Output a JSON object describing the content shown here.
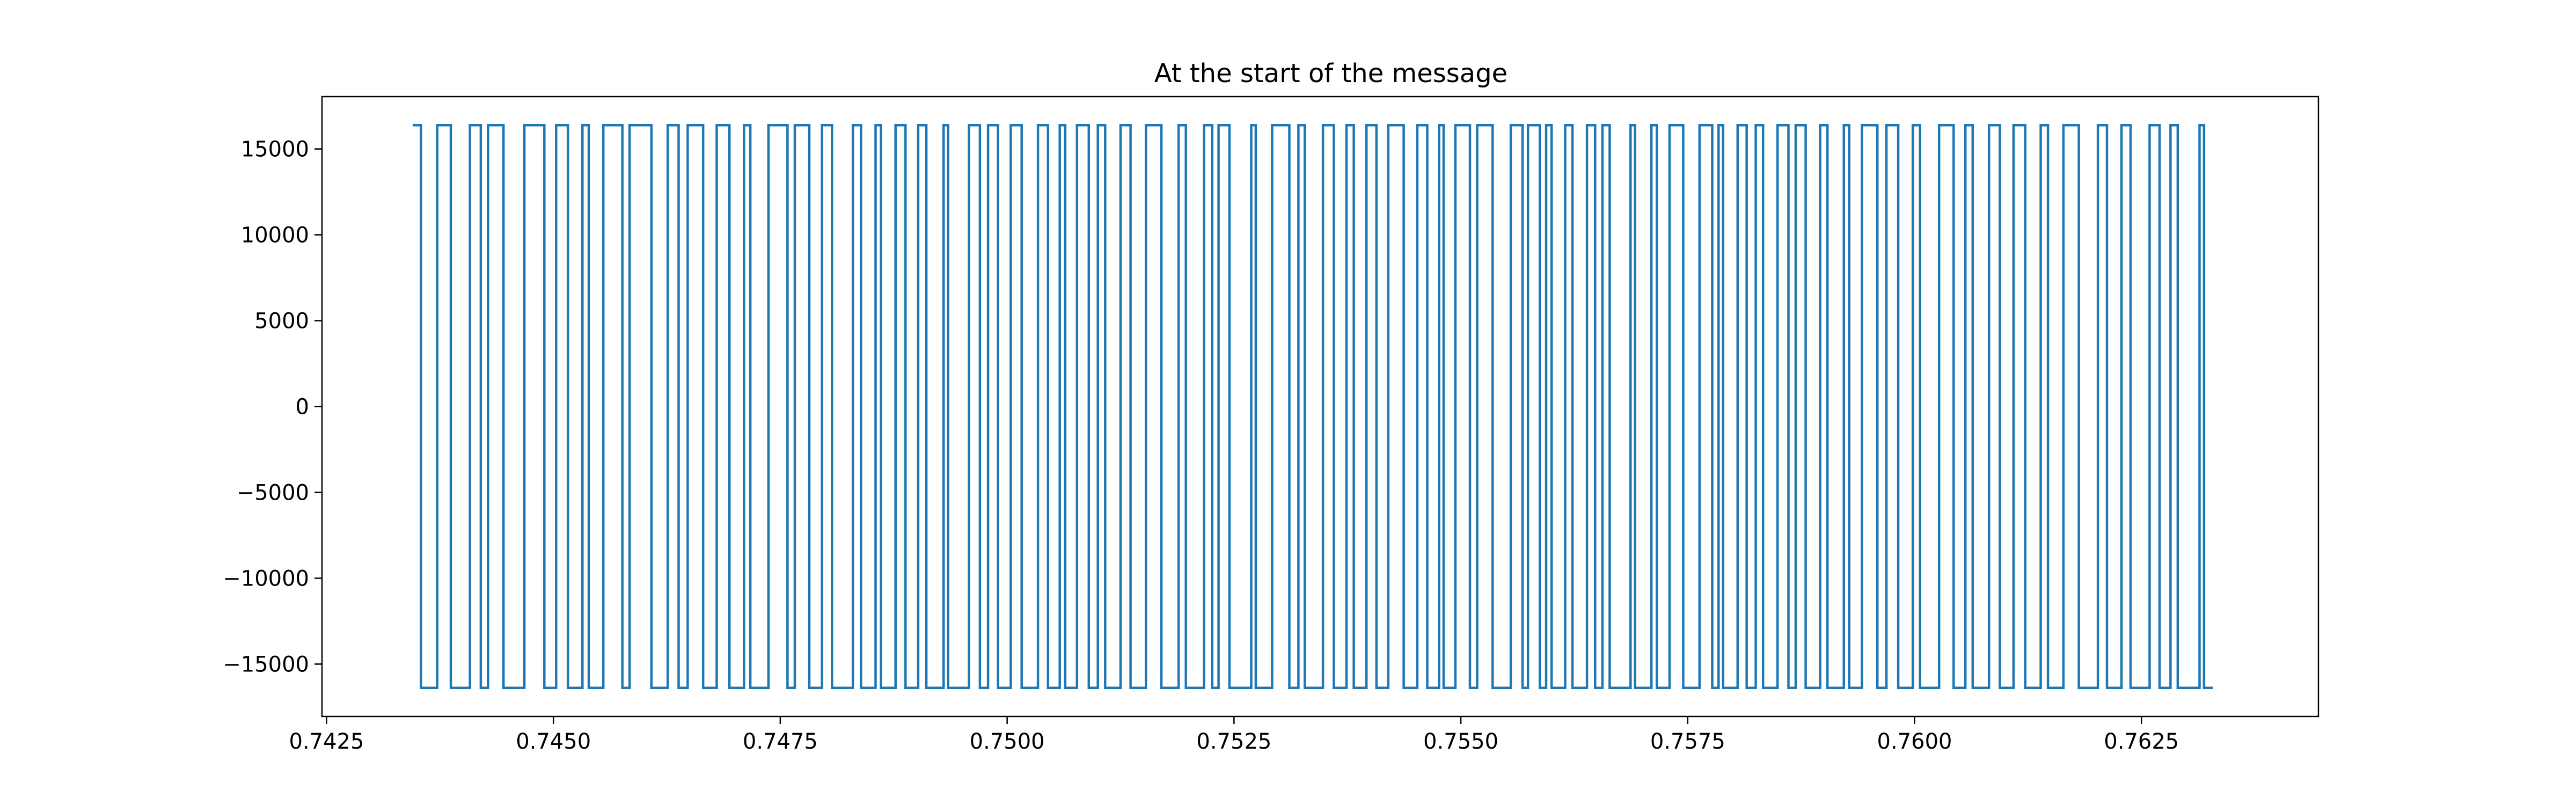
{
  "chart_data": {
    "type": "line",
    "title": "At the start of the message",
    "xlabel": "",
    "ylabel": "",
    "xlim": [
      0.74245,
      0.76445
    ],
    "ylim": [
      -18050,
      18050
    ],
    "xticks": [
      0.7425,
      0.745,
      0.7475,
      0.75,
      0.7525,
      0.755,
      0.7575,
      0.76,
      0.7625
    ],
    "xtick_labels": [
      "0.7425",
      "0.7450",
      "0.7475",
      "0.7500",
      "0.7525",
      "0.7550",
      "0.7575",
      "0.7600",
      "0.7625"
    ],
    "yticks": [
      -15000,
      -10000,
      -5000,
      0,
      5000,
      10000,
      15000
    ],
    "ytick_labels": [
      "−15000",
      "−10000",
      "−5000",
      "0",
      "5000",
      "10000",
      "15000"
    ],
    "grid": false,
    "colors": {
      "line": "#1f77b4"
    },
    "series": [
      {
        "step": "post",
        "x": [
          0.74345,
          0.74354,
          0.74372,
          0.74387,
          0.74408,
          0.7442,
          0.74428,
          0.74445,
          0.74468,
          0.7449,
          0.74503,
          0.74516,
          0.74532,
          0.74539,
          0.74555,
          0.74576,
          0.74584,
          0.74608,
          0.74626,
          0.74638,
          0.74648,
          0.74665,
          0.7468,
          0.74694,
          0.7471,
          0.74717,
          0.74737,
          0.74758,
          0.74766,
          0.74782,
          0.74796,
          0.74807,
          0.7483,
          0.74839,
          0.74855,
          0.74861,
          0.74877,
          0.74888,
          0.74902,
          0.74911,
          0.7493,
          0.74935,
          0.74958,
          0.7497,
          0.74979,
          0.7499,
          0.75004,
          0.75016,
          0.75034,
          0.75045,
          0.75058,
          0.75064,
          0.75077,
          0.7509,
          0.751,
          0.75108,
          0.75125,
          0.75136,
          0.75153,
          0.7517,
          0.75189,
          0.75197,
          0.75217,
          0.75226,
          0.75233,
          0.75245,
          0.75269,
          0.75274,
          0.75292,
          0.75311,
          0.75321,
          0.75328,
          0.75348,
          0.7536,
          0.75374,
          0.75382,
          0.75396,
          0.75407,
          0.7542,
          0.75437,
          0.75452,
          0.75463,
          0.75476,
          0.75481,
          0.75494,
          0.7551,
          0.75518,
          0.75535,
          0.75555,
          0.75568,
          0.75574,
          0.75587,
          0.75594,
          0.756,
          0.75615,
          0.75623,
          0.75639,
          0.75648,
          0.75656,
          0.75664,
          0.75687,
          0.75692,
          0.7571,
          0.75716,
          0.7573,
          0.75745,
          0.75763,
          0.75777,
          0.75784,
          0.75789,
          0.75805,
          0.75815,
          0.75825,
          0.75833,
          0.75849,
          0.75861,
          0.75869,
          0.7588,
          0.75896,
          0.75904,
          0.75922,
          0.75928,
          0.75942,
          0.75959,
          0.75969,
          0.75982,
          0.75998,
          0.76006,
          0.76027,
          0.76043,
          0.76056,
          0.76064,
          0.76082,
          0.76094,
          0.76109,
          0.76122,
          0.76139,
          0.76147,
          0.76164,
          0.76181,
          0.76202,
          0.76212,
          0.76228,
          0.76238,
          0.76259,
          0.7627,
          0.76282,
          0.7629,
          0.76314,
          0.76319,
          0.76329
        ],
        "y": [
          16384,
          -16384,
          16384,
          -16384,
          16384,
          -16384,
          16384,
          -16384,
          16384,
          -16384,
          16384,
          -16384,
          16384,
          -16384,
          16384,
          -16384,
          16384,
          -16384,
          16384,
          -16384,
          16384,
          -16384,
          16384,
          -16384,
          16384,
          -16384,
          16384,
          -16384,
          16384,
          -16384,
          16384,
          -16384,
          16384,
          -16384,
          16384,
          -16384,
          16384,
          -16384,
          16384,
          -16384,
          16384,
          -16384,
          16384,
          -16384,
          16384,
          -16384,
          16384,
          -16384,
          16384,
          -16384,
          16384,
          -16384,
          16384,
          -16384,
          16384,
          -16384,
          16384,
          -16384,
          16384,
          -16384,
          16384,
          -16384,
          16384,
          -16384,
          16384,
          -16384,
          16384,
          -16384,
          16384,
          -16384,
          16384,
          -16384,
          16384,
          -16384,
          16384,
          -16384,
          16384,
          -16384,
          16384,
          -16384,
          16384,
          -16384,
          16384,
          -16384,
          16384,
          -16384,
          16384,
          -16384,
          16384,
          -16384,
          16384,
          -16384,
          16384,
          -16384,
          16384,
          -16384,
          16384,
          -16384,
          16384,
          -16384,
          16384,
          -16384,
          16384,
          -16384,
          16384,
          -16384,
          16384,
          -16384,
          16384,
          -16384,
          16384,
          -16384,
          16384,
          -16384,
          16384,
          -16384,
          16384,
          -16384,
          16384,
          -16384,
          16384,
          -16384,
          16384,
          -16384,
          16384,
          -16384,
          16384,
          -16384,
          16384,
          -16384,
          16384,
          -16384,
          16384,
          -16384,
          16384,
          -16384,
          16384,
          -16384,
          16384,
          -16384,
          16384,
          -16384,
          16384,
          -16384,
          16384,
          -16384,
          16384,
          -16384,
          16384,
          -16384,
          -16384
        ]
      }
    ]
  }
}
